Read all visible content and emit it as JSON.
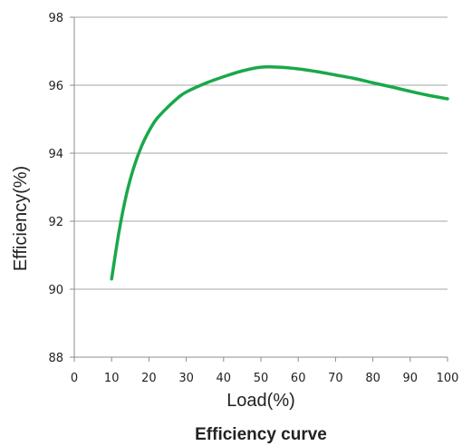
{
  "chart_data": {
    "type": "line",
    "title": "Efficiency curve",
    "xlabel": "Load(%)",
    "ylabel": "Efficiency(%)",
    "xlim": [
      0,
      100
    ],
    "ylim": [
      88,
      98
    ],
    "x_ticks": [
      0,
      10,
      20,
      30,
      40,
      50,
      60,
      70,
      80,
      90,
      100
    ],
    "y_ticks": [
      88,
      90,
      92,
      94,
      96,
      98
    ],
    "grid": "horizontal",
    "legend": "none",
    "line_color": "#1aa84a",
    "series": [
      {
        "x": [
          10,
          12,
          14,
          16,
          18,
          20,
          22,
          25,
          28,
          30,
          35,
          40,
          45,
          50,
          55,
          60,
          65,
          70,
          75,
          80,
          85,
          90,
          95,
          100
        ],
        "values": [
          90.3,
          91.7,
          92.8,
          93.6,
          94.2,
          94.65,
          95.0,
          95.35,
          95.65,
          95.8,
          96.05,
          96.25,
          96.42,
          96.53,
          96.53,
          96.48,
          96.4,
          96.3,
          96.2,
          96.07,
          95.95,
          95.82,
          95.7,
          95.6
        ]
      }
    ]
  }
}
